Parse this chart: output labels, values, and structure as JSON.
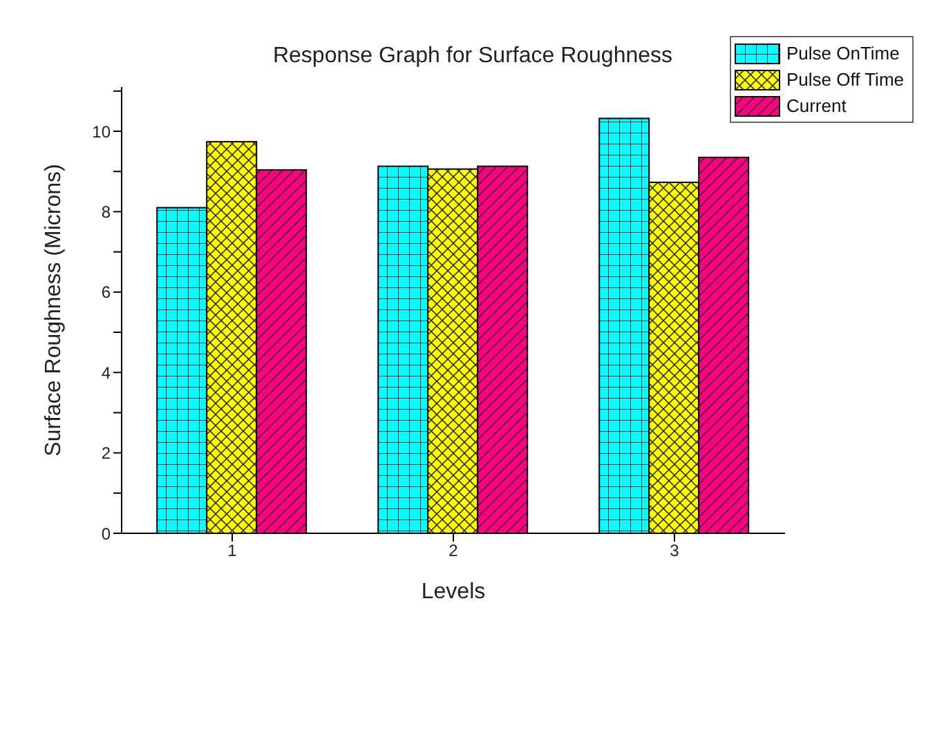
{
  "chart_data": {
    "type": "bar",
    "title": "Response Graph for Surface Roughness",
    "xlabel": "Levels",
    "ylabel": "Surface Roughness (Microns)",
    "categories": [
      "1",
      "2",
      "3"
    ],
    "series": [
      {
        "name": "Pulse OnTime",
        "color": "#00ffff",
        "values": [
          8.1,
          9.13,
          10.32
        ]
      },
      {
        "name": "Pulse Off Time",
        "color": "#ffff00",
        "values": [
          9.74,
          9.06,
          8.73
        ]
      },
      {
        "name": "Current",
        "color": "#ff0080",
        "values": [
          9.04,
          9.13,
          9.35
        ]
      }
    ],
    "ylim": [
      0,
      11.1
    ],
    "yticks": [
      0,
      {
        "value": 1,
        "label": null
      },
      2,
      {
        "value": 3,
        "label": null
      },
      4,
      {
        "value": 5,
        "label": null
      },
      6,
      {
        "value": 7,
        "label": null
      },
      8,
      {
        "value": 9,
        "label": null
      },
      10,
      {
        "value": 11,
        "label": null
      }
    ],
    "grid": false,
    "legend": "top right"
  }
}
